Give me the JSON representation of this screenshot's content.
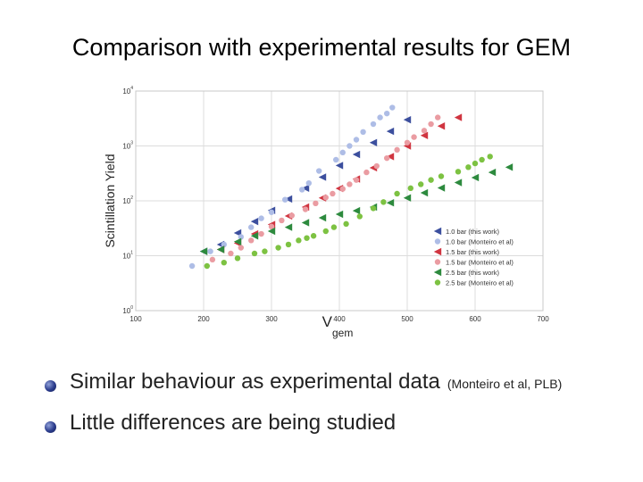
{
  "slide": {
    "title": "Comparison with experimental results for GEM",
    "bullets": [
      {
        "text": "Similar behaviour as experimental data",
        "note": "(Monteiro et al, PLB)"
      },
      {
        "text": "Little differences are being studied",
        "note": ""
      }
    ]
  },
  "chart_data": {
    "type": "scatter",
    "title": "",
    "xlabel": "V",
    "xlabel_subscript": "gem",
    "ylabel": "Scintillation Yield",
    "xlim": [
      100,
      700
    ],
    "ylim_log10": [
      0,
      4
    ],
    "yscale": "log",
    "grid": true,
    "legend_position": "bottom-right",
    "x_ticks": [
      "100",
      "200",
      "300",
      "400",
      "500",
      "600",
      "700"
    ],
    "y_ticks": [
      {
        "base": "10",
        "exp": "0"
      },
      {
        "base": "10",
        "exp": "1"
      },
      {
        "base": "10",
        "exp": "2"
      },
      {
        "base": "10",
        "exp": "3"
      },
      {
        "base": "10",
        "exp": "4"
      }
    ],
    "series": [
      {
        "name": "1.0 bar (this work)",
        "marker": "triangle-left",
        "color": "#3c4f9e",
        "points": [
          [
            200,
            12
          ],
          [
            225,
            16
          ],
          [
            250,
            26
          ],
          [
            275,
            42
          ],
          [
            300,
            67
          ],
          [
            325,
            108
          ],
          [
            350,
            170
          ],
          [
            375,
            270
          ],
          [
            400,
            440
          ],
          [
            425,
            700
          ],
          [
            450,
            1150
          ],
          [
            475,
            1850
          ],
          [
            500,
            3000
          ]
        ]
      },
      {
        "name": "1.0 bar (Monteiro et al)",
        "marker": "circle",
        "color": "#aebde6",
        "points": [
          [
            183,
            6.5
          ],
          [
            210,
            12
          ],
          [
            230,
            16
          ],
          [
            255,
            22
          ],
          [
            270,
            33
          ],
          [
            285,
            48
          ],
          [
            300,
            62
          ],
          [
            320,
            105
          ],
          [
            345,
            160
          ],
          [
            355,
            210
          ],
          [
            370,
            350
          ],
          [
            395,
            560
          ],
          [
            405,
            760
          ],
          [
            415,
            1000
          ],
          [
            425,
            1300
          ],
          [
            435,
            1800
          ],
          [
            450,
            2500
          ],
          [
            460,
            3300
          ],
          [
            470,
            3900
          ],
          [
            478,
            5000
          ]
        ]
      },
      {
        "name": "1.5 bar (this work)",
        "marker": "triangle-left",
        "color": "#d03540",
        "points": [
          [
            225,
            13
          ],
          [
            250,
            17
          ],
          [
            275,
            25
          ],
          [
            300,
            37
          ],
          [
            325,
            53
          ],
          [
            350,
            77
          ],
          [
            375,
            113
          ],
          [
            400,
            168
          ],
          [
            425,
            250
          ],
          [
            450,
            400
          ],
          [
            475,
            640
          ],
          [
            500,
            1000
          ],
          [
            525,
            1550
          ],
          [
            550,
            2300
          ],
          [
            575,
            3300
          ]
        ]
      },
      {
        "name": "1.5 bar (Monteiro et al)",
        "marker": "circle",
        "color": "#ea9ca2",
        "points": [
          [
            213,
            8.5
          ],
          [
            240,
            11
          ],
          [
            255,
            14
          ],
          [
            270,
            19
          ],
          [
            285,
            25
          ],
          [
            300,
            34
          ],
          [
            315,
            44
          ],
          [
            330,
            54
          ],
          [
            350,
            70
          ],
          [
            365,
            90
          ],
          [
            380,
            115
          ],
          [
            390,
            135
          ],
          [
            405,
            165
          ],
          [
            415,
            200
          ],
          [
            425,
            240
          ],
          [
            440,
            330
          ],
          [
            455,
            430
          ],
          [
            470,
            600
          ],
          [
            485,
            850
          ],
          [
            500,
            1150
          ],
          [
            510,
            1450
          ],
          [
            525,
            1900
          ],
          [
            535,
            2500
          ],
          [
            545,
            3300
          ]
        ]
      },
      {
        "name": "2.5 bar (this work)",
        "marker": "triangle-left",
        "color": "#2d8a3e",
        "points": [
          [
            200,
            12
          ],
          [
            225,
            13
          ],
          [
            250,
            18
          ],
          [
            275,
            23
          ],
          [
            300,
            28
          ],
          [
            325,
            33
          ],
          [
            350,
            40
          ],
          [
            375,
            49
          ],
          [
            400,
            57
          ],
          [
            425,
            66
          ],
          [
            450,
            77
          ],
          [
            475,
            92
          ],
          [
            500,
            113
          ],
          [
            525,
            140
          ],
          [
            550,
            172
          ],
          [
            575,
            215
          ],
          [
            600,
            265
          ],
          [
            625,
            330
          ],
          [
            650,
            410
          ]
        ]
      },
      {
        "name": "2.5 bar (Monteiro et al)",
        "marker": "circle",
        "color": "#7dc242",
        "points": [
          [
            205,
            6.5
          ],
          [
            230,
            7.5
          ],
          [
            250,
            9
          ],
          [
            275,
            11
          ],
          [
            290,
            12
          ],
          [
            310,
            14
          ],
          [
            325,
            16
          ],
          [
            340,
            19
          ],
          [
            352,
            21
          ],
          [
            362,
            23
          ],
          [
            380,
            28
          ],
          [
            392,
            33
          ],
          [
            410,
            38
          ],
          [
            430,
            52
          ],
          [
            450,
            73
          ],
          [
            465,
            95
          ],
          [
            485,
            135
          ],
          [
            505,
            170
          ],
          [
            520,
            200
          ],
          [
            535,
            240
          ],
          [
            550,
            280
          ],
          [
            575,
            340
          ],
          [
            590,
            410
          ],
          [
            600,
            480
          ],
          [
            610,
            560
          ],
          [
            622,
            640
          ]
        ]
      }
    ]
  }
}
